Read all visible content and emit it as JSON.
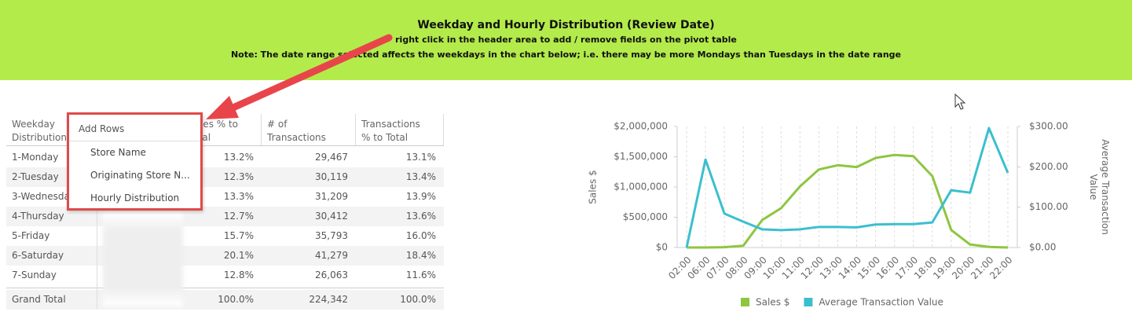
{
  "header": {
    "title": "Weekday and Hourly Distribution (Review Date)",
    "line1": "right click in the header area to add / remove fields on the pivot table",
    "line2": "Note: The date range selected affects the weekdays in the chart below; i.e. there may be more Mondays than Tuesdays in the date range"
  },
  "table": {
    "columns": [
      "Weekday Distribution",
      "Sales % to Total",
      "# of Transactions",
      "Transactions % to Total"
    ],
    "rows": [
      [
        "1-Monday",
        "13.2%",
        "29,467",
        "13.1%"
      ],
      [
        "2-Tuesday",
        "12.3%",
        "30,119",
        "13.4%"
      ],
      [
        "3-Wednesday",
        "13.3%",
        "31,209",
        "13.9%"
      ],
      [
        "4-Thursday",
        "12.7%",
        "30,412",
        "13.6%"
      ],
      [
        "5-Friday",
        "15.7%",
        "35,793",
        "16.0%"
      ],
      [
        "6-Saturday",
        "20.1%",
        "41,279",
        "18.4%"
      ],
      [
        "7-Sunday",
        "12.8%",
        "26,063",
        "11.6%"
      ],
      [
        "Grand Total",
        "100.0%",
        "224,342",
        "100.0%"
      ]
    ]
  },
  "menu": {
    "title": "Add Rows",
    "items": [
      "Store Name",
      "Originating Store N...",
      "Hourly Distribution"
    ]
  },
  "chart_data": {
    "type": "line",
    "categories": [
      "02:00",
      "06:00",
      "07:00",
      "08:00",
      "09:00",
      "10:00",
      "11:00",
      "12:00",
      "13:00",
      "14:00",
      "15:00",
      "16:00",
      "17:00",
      "18:00",
      "19:00",
      "20:00",
      "21:00",
      "22:00"
    ],
    "series": [
      {
        "name": "Sales $",
        "color": "#8dc63f",
        "values": [
          0,
          0,
          5000,
          30000,
          455000,
          650000,
          1010000,
          1290000,
          1360000,
          1330000,
          1480000,
          1530000,
          1510000,
          1180000,
          290000,
          50000,
          10000,
          0
        ]
      },
      {
        "name": "Average Transaction Value",
        "color": "#3bbfcf",
        "axis": "y2",
        "values": [
          0,
          218,
          84,
          64,
          45,
          43,
          45,
          51,
          51,
          50,
          57,
          58,
          58,
          62,
          142,
          136,
          296,
          185
        ]
      }
    ],
    "ylabel": "Sales $",
    "y2label": "Average Transaction Value",
    "ylim": [
      0,
      2000000
    ],
    "yticks": [
      {
        "value": 0,
        "label": "$0"
      },
      {
        "value": 500000,
        "label": "$500,000"
      },
      {
        "value": 1000000,
        "label": "$1,000,000"
      },
      {
        "value": 1500000,
        "label": "$1,500,000"
      },
      {
        "value": 2000000,
        "label": "$2,000,000"
      }
    ],
    "y2lim": [
      0,
      300
    ],
    "y2ticks": [
      {
        "value": 0,
        "label": "$0.00"
      },
      {
        "value": 100,
        "label": "$100.00"
      },
      {
        "value": 200,
        "label": "$200.00"
      },
      {
        "value": 300,
        "label": "$300.00"
      }
    ],
    "grid": "x",
    "legend": "bottom"
  }
}
